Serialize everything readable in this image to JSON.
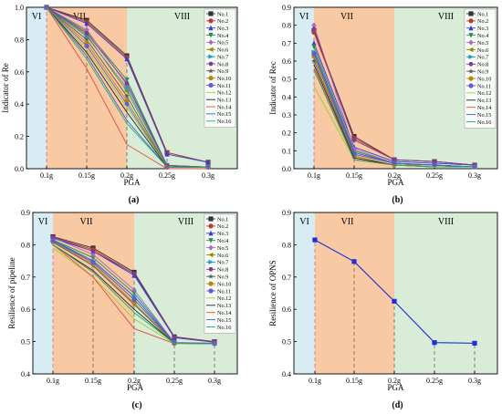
{
  "chart_data": [
    {
      "id": "a",
      "type": "line",
      "panel_label": "(a)",
      "title": "",
      "xlabel": "PGA",
      "ylabel": "Indicator of Re",
      "categories": [
        "0.1g",
        "0.15g",
        "0.2g",
        "0.25g",
        "0.3g"
      ],
      "ylim": [
        0,
        1.0
      ],
      "yticks": [
        "0.0",
        "0.2",
        "0.4",
        "0.6",
        "0.8",
        "1.0"
      ],
      "grid": false,
      "legend_position": "top-right",
      "regions": [
        {
          "label": "VI",
          "color": "#d8ecf4"
        },
        {
          "label": "VII",
          "color": "#f8c9a3"
        },
        {
          "label": "VIII",
          "color": "#d8ecd8"
        }
      ],
      "series": [
        {
          "name": "No.1",
          "color": "#333333",
          "marker": "square",
          "values": [
            1.0,
            0.92,
            0.7,
            0.1,
            0.04
          ]
        },
        {
          "name": "No.2",
          "color": "#c0392b",
          "marker": "circle",
          "values": [
            1.0,
            0.91,
            0.69,
            0.1,
            0.04
          ]
        },
        {
          "name": "No.3",
          "color": "#2c3fd8",
          "marker": "triangle-up",
          "values": [
            1.0,
            0.9,
            0.68,
            0.09,
            0.04
          ]
        },
        {
          "name": "No.4",
          "color": "#2e8b57",
          "marker": "triangle-down",
          "values": [
            1.0,
            0.85,
            0.55,
            0.02,
            0.01
          ]
        },
        {
          "name": "No.5",
          "color": "#a569bd",
          "marker": "diamond",
          "values": [
            1.0,
            0.86,
            0.52,
            0.02,
            0.01
          ]
        },
        {
          "name": "No.6",
          "color": "#8e8e00",
          "marker": "triangle-left",
          "values": [
            1.0,
            0.83,
            0.48,
            0.02,
            0.01
          ]
        },
        {
          "name": "No.7",
          "color": "#1f9fbf",
          "marker": "triangle-right",
          "values": [
            1.0,
            0.82,
            0.5,
            0.02,
            0.01
          ]
        },
        {
          "name": "No.8",
          "color": "#7d3c98",
          "marker": "hexagon",
          "values": [
            1.0,
            0.84,
            0.53,
            0.02,
            0.01
          ]
        },
        {
          "name": "No.9",
          "color": "#555555",
          "marker": "star",
          "values": [
            1.0,
            0.8,
            0.45,
            0.01,
            0.01
          ]
        },
        {
          "name": "No.10",
          "color": "#b8860b",
          "marker": "circle",
          "values": [
            1.0,
            0.78,
            0.42,
            0.01,
            0.01
          ]
        },
        {
          "name": "No.11",
          "color": "#6a5acd",
          "marker": "circle",
          "values": [
            1.0,
            0.76,
            0.4,
            0.01,
            0.01
          ]
        },
        {
          "name": "No.12",
          "color": "#9acd32",
          "marker": "none",
          "values": [
            1.0,
            0.74,
            0.38,
            0.01,
            0.01
          ]
        },
        {
          "name": "No.13",
          "color": "#222222",
          "marker": "none",
          "values": [
            1.0,
            0.72,
            0.35,
            0.01,
            0.01
          ]
        },
        {
          "name": "No.14",
          "color": "#e74c3c",
          "marker": "none",
          "values": [
            1.0,
            0.62,
            0.15,
            0.0,
            0.0
          ]
        },
        {
          "name": "No.15",
          "color": "#3b5bdb",
          "marker": "none",
          "values": [
            1.0,
            0.7,
            0.3,
            0.01,
            0.01
          ]
        },
        {
          "name": "No.16",
          "color": "#27ae60",
          "marker": "none",
          "values": [
            1.0,
            0.68,
            0.28,
            0.01,
            0.01
          ]
        }
      ]
    },
    {
      "id": "b",
      "type": "line",
      "panel_label": "(b)",
      "title": "",
      "xlabel": "PGA",
      "ylabel": "Indicator of Rec",
      "categories": [
        "0.1g",
        "0.15g",
        "0.2g",
        "0.25g",
        "0.3g"
      ],
      "ylim": [
        0,
        0.9
      ],
      "yticks": [
        "0.0",
        "0.1",
        "0.2",
        "0.3",
        "0.4",
        "0.5",
        "0.6",
        "0.7",
        "0.8",
        "0.9"
      ],
      "grid": false,
      "legend_position": "top-right",
      "regions": [
        {
          "label": "VI",
          "color": "#d8ecf4"
        },
        {
          "label": "VII",
          "color": "#f8c9a3"
        },
        {
          "label": "VIII",
          "color": "#d8ecd8"
        }
      ],
      "series": [
        {
          "name": "No.1",
          "color": "#333333",
          "marker": "square",
          "values": [
            0.77,
            0.18,
            0.05,
            0.04,
            0.02
          ]
        },
        {
          "name": "No.2",
          "color": "#c0392b",
          "marker": "circle",
          "values": [
            0.76,
            0.17,
            0.05,
            0.04,
            0.02
          ]
        },
        {
          "name": "No.3",
          "color": "#2c3fd8",
          "marker": "triangle-up",
          "values": [
            0.7,
            0.12,
            0.04,
            0.03,
            0.02
          ]
        },
        {
          "name": "No.4",
          "color": "#2e8b57",
          "marker": "triangle-down",
          "values": [
            0.68,
            0.1,
            0.03,
            0.02,
            0.01
          ]
        },
        {
          "name": "No.5",
          "color": "#a569bd",
          "marker": "diamond",
          "values": [
            0.8,
            0.11,
            0.03,
            0.02,
            0.01
          ]
        },
        {
          "name": "No.6",
          "color": "#8e8e00",
          "marker": "triangle-left",
          "values": [
            0.62,
            0.08,
            0.03,
            0.02,
            0.01
          ]
        },
        {
          "name": "No.7",
          "color": "#1f9fbf",
          "marker": "triangle-right",
          "values": [
            0.65,
            0.09,
            0.03,
            0.02,
            0.01
          ]
        },
        {
          "name": "No.8",
          "color": "#7d3c98",
          "marker": "hexagon",
          "values": [
            0.78,
            0.16,
            0.05,
            0.04,
            0.02
          ]
        },
        {
          "name": "No.9",
          "color": "#555555",
          "marker": "star",
          "values": [
            0.6,
            0.07,
            0.02,
            0.02,
            0.01
          ]
        },
        {
          "name": "No.10",
          "color": "#b8860b",
          "marker": "circle",
          "values": [
            0.63,
            0.07,
            0.02,
            0.02,
            0.01
          ]
        },
        {
          "name": "No.11",
          "color": "#6a5acd",
          "marker": "circle",
          "values": [
            0.64,
            0.08,
            0.03,
            0.02,
            0.01
          ]
        },
        {
          "name": "No.12",
          "color": "#9acd32",
          "marker": "none",
          "values": [
            0.46,
            0.05,
            0.02,
            0.01,
            0.01
          ]
        },
        {
          "name": "No.13",
          "color": "#222222",
          "marker": "none",
          "values": [
            0.58,
            0.06,
            0.02,
            0.01,
            0.01
          ]
        },
        {
          "name": "No.14",
          "color": "#e74c3c",
          "marker": "none",
          "values": [
            0.56,
            0.05,
            0.02,
            0.01,
            0.01
          ]
        },
        {
          "name": "No.15",
          "color": "#3b5bdb",
          "marker": "none",
          "values": [
            0.66,
            0.09,
            0.03,
            0.02,
            0.01
          ]
        },
        {
          "name": "No.16",
          "color": "#27ae60",
          "marker": "none",
          "values": [
            0.55,
            0.05,
            0.02,
            0.01,
            0.01
          ]
        }
      ]
    },
    {
      "id": "c",
      "type": "line",
      "panel_label": "(c)",
      "title": "",
      "xlabel": "PGA",
      "ylabel": "Resilience of pipeline",
      "categories": [
        "0.1g",
        "0.15g",
        "0.2g",
        "0.25g",
        "0.3g"
      ],
      "ylim": [
        0.4,
        0.9
      ],
      "yticks": [
        "0.4",
        "0.5",
        "0.6",
        "0.7",
        "0.8",
        "0.9"
      ],
      "grid": false,
      "legend_position": "top-right",
      "regions": [
        {
          "label": "VI",
          "color": "#d8ecf4"
        },
        {
          "label": "VII",
          "color": "#f8c9a3"
        },
        {
          "label": "VIII",
          "color": "#d8ecd8"
        }
      ],
      "series": [
        {
          "name": "No.1",
          "color": "#333333",
          "marker": "square",
          "values": [
            0.825,
            0.79,
            0.715,
            0.515,
            0.5
          ]
        },
        {
          "name": "No.2",
          "color": "#c0392b",
          "marker": "circle",
          "values": [
            0.822,
            0.785,
            0.71,
            0.513,
            0.5
          ]
        },
        {
          "name": "No.3",
          "color": "#2c3fd8",
          "marker": "triangle-up",
          "values": [
            0.82,
            0.78,
            0.705,
            0.512,
            0.498
          ]
        },
        {
          "name": "No.4",
          "color": "#2e8b57",
          "marker": "triangle-down",
          "values": [
            0.815,
            0.76,
            0.65,
            0.497,
            0.495
          ]
        },
        {
          "name": "No.5",
          "color": "#a569bd",
          "marker": "diamond",
          "values": [
            0.822,
            0.77,
            0.66,
            0.497,
            0.495
          ]
        },
        {
          "name": "No.6",
          "color": "#8e8e00",
          "marker": "triangle-left",
          "values": [
            0.812,
            0.745,
            0.63,
            0.496,
            0.494
          ]
        },
        {
          "name": "No.7",
          "color": "#1f9fbf",
          "marker": "triangle-right",
          "values": [
            0.815,
            0.75,
            0.64,
            0.496,
            0.494
          ]
        },
        {
          "name": "No.8",
          "color": "#7d3c98",
          "marker": "hexagon",
          "values": [
            0.823,
            0.78,
            0.71,
            0.513,
            0.499
          ]
        },
        {
          "name": "No.9",
          "color": "#555555",
          "marker": "star",
          "values": [
            0.808,
            0.735,
            0.615,
            0.495,
            0.494
          ]
        },
        {
          "name": "No.10",
          "color": "#b8860b",
          "marker": "circle",
          "values": [
            0.81,
            0.74,
            0.62,
            0.495,
            0.494
          ]
        },
        {
          "name": "No.11",
          "color": "#6a5acd",
          "marker": "circle",
          "values": [
            0.812,
            0.745,
            0.63,
            0.496,
            0.494
          ]
        },
        {
          "name": "No.12",
          "color": "#9acd32",
          "marker": "none",
          "values": [
            0.79,
            0.7,
            0.57,
            0.494,
            0.493
          ]
        },
        {
          "name": "No.13",
          "color": "#222222",
          "marker": "none",
          "values": [
            0.8,
            0.72,
            0.6,
            0.495,
            0.493
          ]
        },
        {
          "name": "No.14",
          "color": "#e74c3c",
          "marker": "none",
          "values": [
            0.8,
            0.7,
            0.54,
            0.494,
            0.493
          ]
        },
        {
          "name": "No.15",
          "color": "#3b5bdb",
          "marker": "none",
          "values": [
            0.812,
            0.75,
            0.64,
            0.496,
            0.494
          ]
        },
        {
          "name": "No.16",
          "color": "#27ae60",
          "marker": "none",
          "values": [
            0.8,
            0.715,
            0.59,
            0.495,
            0.493
          ]
        }
      ]
    },
    {
      "id": "d",
      "type": "line",
      "panel_label": "(d)",
      "title": "",
      "xlabel": "PGA",
      "ylabel": "Resilience of OPNS",
      "categories": [
        "0.1g",
        "0.15g",
        "0.2g",
        "0.25g",
        "0.3g"
      ],
      "ylim": [
        0.4,
        0.9
      ],
      "yticks": [
        "0.4",
        "0.5",
        "0.6",
        "0.7",
        "0.8",
        "0.9"
      ],
      "grid": false,
      "legend_position": "none",
      "regions": [
        {
          "label": "VI",
          "color": "#d8ecf4"
        },
        {
          "label": "VII",
          "color": "#f8c9a3"
        },
        {
          "label": "VIII",
          "color": "#d8ecd8"
        }
      ],
      "series": [
        {
          "name": "",
          "color": "#1c2fd8",
          "marker": "square",
          "values": [
            0.815,
            0.748,
            0.625,
            0.497,
            0.495
          ]
        }
      ]
    }
  ]
}
